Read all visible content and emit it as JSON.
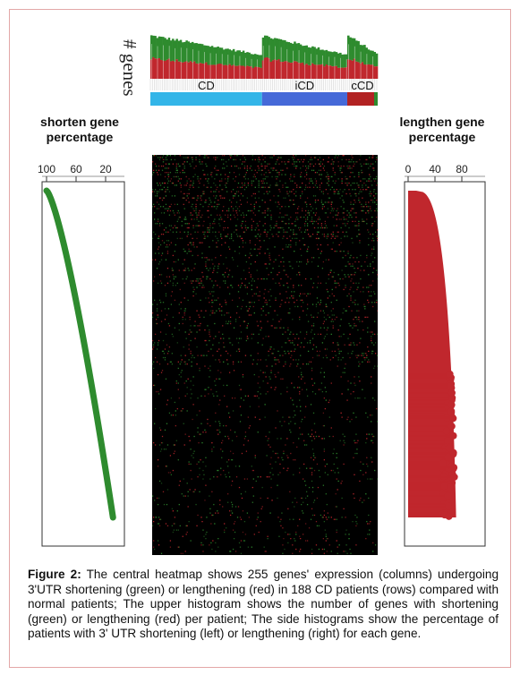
{
  "figure": {
    "top_histogram": {
      "ylabel": "# genes",
      "groups": [
        "CD",
        "iCD",
        "cCD"
      ],
      "group_colors": [
        "#33b5e8",
        "#4569d8",
        "#b22222"
      ],
      "shortening_color": "#2e8b2e",
      "lengthening_color": "#c0272d",
      "group_sizes": [
        110,
        84,
        30
      ]
    },
    "left_panel": {
      "title_line1": "shorten gene",
      "title_line2": "percentage",
      "ticks": [
        "100",
        "60",
        "20"
      ],
      "tick_values": [
        100,
        60,
        20
      ],
      "color": "#2e8b2e"
    },
    "right_panel": {
      "title_line1": "lengthen gene",
      "title_line2": "percentage",
      "ticks": [
        "0",
        "40",
        "80"
      ],
      "tick_values": [
        0,
        40,
        80
      ],
      "color": "#c0272d"
    },
    "heatmap": {
      "columns": 255,
      "rows": 188,
      "shortening_color": "#2e8b2e",
      "lengthening_color": "#c0272d",
      "background": "#000000"
    }
  },
  "caption": {
    "label": "Figure 2:",
    "text": " The central heatmap shows 255 genes' expression (columns) undergoing 3'UTR shortening (green) or lengthening (red) in 188 CD patients (rows) compared with normal patients; The upper histogram shows the number of genes with shortening (green) or lengthening (red) per patient; The side histograms show the percentage of patients with 3' UTR shortening (left) or lengthening (right) for each gene."
  }
}
